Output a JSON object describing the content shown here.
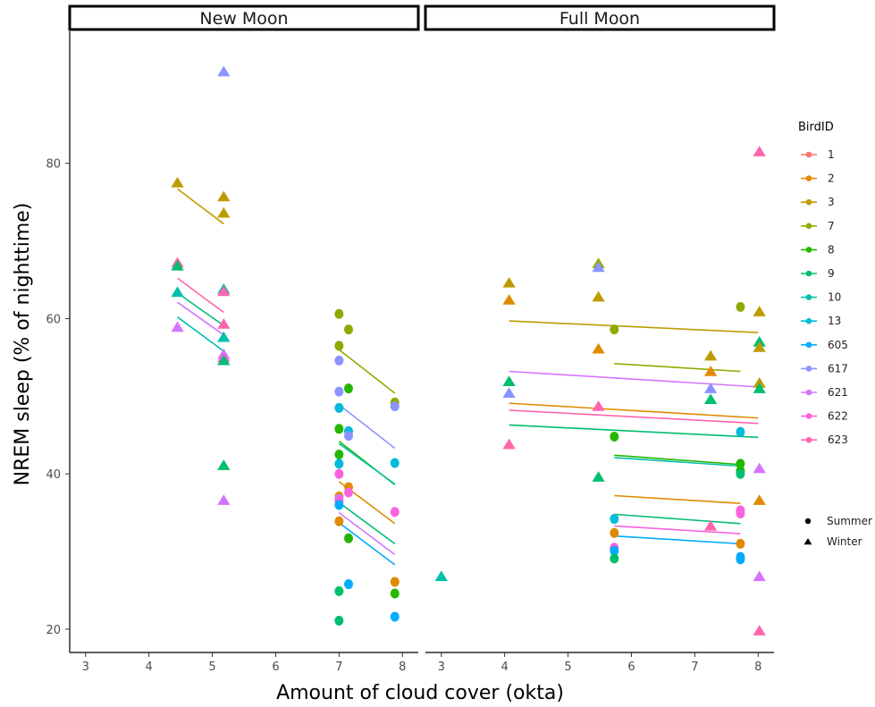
{
  "chart_data": {
    "type": "scatter",
    "xlabel": "Amount of cloud cover (okta)",
    "ylabel": "NREM sleep (% of nighttime)",
    "ylim": [
      17,
      97
    ],
    "y_ticks": [
      20,
      40,
      60,
      80
    ],
    "x_ticks": [
      3,
      4,
      5,
      6,
      7,
      8
    ],
    "xlim": [
      2.75,
      8.25
    ],
    "grid": false,
    "legend_placement": "right",
    "legend_title": "BirdID",
    "shape_legend": [
      {
        "label": "Summer",
        "shape": "circle"
      },
      {
        "label": "Winter",
        "shape": "triangle"
      }
    ],
    "birds": [
      {
        "id": "1",
        "color": "#F8766D"
      },
      {
        "id": "2",
        "color": "#E18A00"
      },
      {
        "id": "3",
        "color": "#BE9C00"
      },
      {
        "id": "7",
        "color": "#8CAB00"
      },
      {
        "id": "8",
        "color": "#24B700"
      },
      {
        "id": "9",
        "color": "#00BE70"
      },
      {
        "id": "10",
        "color": "#00C1AB"
      },
      {
        "id": "13",
        "color": "#00BBDA"
      },
      {
        "id": "605",
        "color": "#00ACFC"
      },
      {
        "id": "617",
        "color": "#8B93FF"
      },
      {
        "id": "621",
        "color": "#D575FE"
      },
      {
        "id": "622",
        "color": "#F962DD"
      },
      {
        "id": "623",
        "color": "#FF65AC"
      }
    ],
    "panels": [
      {
        "label": "New Moon",
        "points": [
          {
            "x": 4.45,
            "y": 77.5,
            "bird": "3",
            "season": "Winter"
          },
          {
            "x": 4.45,
            "y": 67.2,
            "bird": "623",
            "season": "Winter"
          },
          {
            "x": 4.45,
            "y": 66.8,
            "bird": "9",
            "season": "Winter"
          },
          {
            "x": 4.45,
            "y": 63.4,
            "bird": "10",
            "season": "Winter"
          },
          {
            "x": 4.45,
            "y": 58.9,
            "bird": "621",
            "season": "Winter"
          },
          {
            "x": 5.18,
            "y": 91.8,
            "bird": "617",
            "season": "Winter"
          },
          {
            "x": 5.18,
            "y": 75.7,
            "bird": "3",
            "season": "Winter"
          },
          {
            "x": 5.18,
            "y": 73.6,
            "bird": "3",
            "season": "Winter"
          },
          {
            "x": 5.18,
            "y": 63.8,
            "bird": "10",
            "season": "Winter"
          },
          {
            "x": 5.18,
            "y": 63.5,
            "bird": "623",
            "season": "Winter"
          },
          {
            "x": 5.18,
            "y": 59.3,
            "bird": "623",
            "season": "Winter"
          },
          {
            "x": 5.18,
            "y": 57.6,
            "bird": "10",
            "season": "Winter"
          },
          {
            "x": 5.18,
            "y": 55.4,
            "bird": "621",
            "season": "Winter"
          },
          {
            "x": 5.18,
            "y": 55.0,
            "bird": "622",
            "season": "Winter"
          },
          {
            "x": 5.18,
            "y": 54.6,
            "bird": "9",
            "season": "Winter"
          },
          {
            "x": 5.18,
            "y": 41.1,
            "bird": "9",
            "season": "Winter"
          },
          {
            "x": 5.18,
            "y": 36.6,
            "bird": "621",
            "season": "Winter"
          },
          {
            "x": 7.0,
            "y": 60.6,
            "bird": "7",
            "season": "Summer"
          },
          {
            "x": 7.0,
            "y": 56.5,
            "bird": "7",
            "season": "Summer"
          },
          {
            "x": 7.0,
            "y": 54.6,
            "bird": "617",
            "season": "Summer"
          },
          {
            "x": 7.0,
            "y": 50.6,
            "bird": "617",
            "season": "Summer"
          },
          {
            "x": 7.0,
            "y": 48.5,
            "bird": "13",
            "season": "Summer"
          },
          {
            "x": 7.0,
            "y": 45.8,
            "bird": "8",
            "season": "Summer"
          },
          {
            "x": 7.0,
            "y": 42.5,
            "bird": "8",
            "season": "Summer"
          },
          {
            "x": 7.0,
            "y": 41.3,
            "bird": "13",
            "season": "Summer"
          },
          {
            "x": 7.0,
            "y": 40.0,
            "bird": "622",
            "season": "Summer"
          },
          {
            "x": 7.0,
            "y": 37.1,
            "bird": "2",
            "season": "Summer"
          },
          {
            "x": 7.0,
            "y": 36.8,
            "bird": "621",
            "season": "Summer"
          },
          {
            "x": 7.0,
            "y": 36.5,
            "bird": "622",
            "season": "Summer"
          },
          {
            "x": 7.0,
            "y": 36.0,
            "bird": "605",
            "season": "Summer"
          },
          {
            "x": 7.0,
            "y": 33.9,
            "bird": "2",
            "season": "Summer"
          },
          {
            "x": 7.0,
            "y": 24.9,
            "bird": "9",
            "season": "Summer"
          },
          {
            "x": 7.0,
            "y": 21.1,
            "bird": "9",
            "season": "Summer"
          },
          {
            "x": 7.15,
            "y": 58.6,
            "bird": "7",
            "season": "Summer"
          },
          {
            "x": 7.15,
            "y": 51.0,
            "bird": "8",
            "season": "Summer"
          },
          {
            "x": 7.15,
            "y": 45.5,
            "bird": "13",
            "season": "Summer"
          },
          {
            "x": 7.15,
            "y": 44.9,
            "bird": "617",
            "season": "Summer"
          },
          {
            "x": 7.15,
            "y": 38.3,
            "bird": "2",
            "season": "Summer"
          },
          {
            "x": 7.15,
            "y": 37.6,
            "bird": "622",
            "season": "Summer"
          },
          {
            "x": 7.15,
            "y": 31.7,
            "bird": "8",
            "season": "Summer"
          },
          {
            "x": 7.15,
            "y": 25.8,
            "bird": "605",
            "season": "Summer"
          },
          {
            "x": 7.88,
            "y": 49.2,
            "bird": "7",
            "season": "Summer"
          },
          {
            "x": 7.88,
            "y": 48.7,
            "bird": "617",
            "season": "Summer"
          },
          {
            "x": 7.88,
            "y": 41.4,
            "bird": "13",
            "season": "Summer"
          },
          {
            "x": 7.88,
            "y": 35.1,
            "bird": "622",
            "season": "Summer"
          },
          {
            "x": 7.88,
            "y": 26.1,
            "bird": "2",
            "season": "Summer"
          },
          {
            "x": 7.88,
            "y": 24.6,
            "bird": "8",
            "season": "Summer"
          },
          {
            "x": 7.88,
            "y": 21.6,
            "bird": "605",
            "season": "Summer"
          }
        ],
        "fit_lines": [
          {
            "bird": "3",
            "x": [
              4.45,
              5.18
            ],
            "y": [
              76.7,
              72.2
            ]
          },
          {
            "bird": "623",
            "x": [
              4.45,
              5.18
            ],
            "y": [
              65.2,
              60.8
            ]
          },
          {
            "bird": "9",
            "x": [
              4.45,
              5.18
            ],
            "y": [
              63.3,
              59.1
            ]
          },
          {
            "bird": "621",
            "x": [
              4.45,
              5.18
            ],
            "y": [
              62.1,
              57.9
            ]
          },
          {
            "bird": "10",
            "x": [
              4.45,
              5.18
            ],
            "y": [
              60.2,
              55.8
            ]
          },
          {
            "bird": "7",
            "x": [
              7.0,
              7.88
            ],
            "y": [
              56.0,
              50.4
            ]
          },
          {
            "bird": "617",
            "x": [
              7.0,
              7.88
            ],
            "y": [
              48.9,
              43.3
            ]
          },
          {
            "bird": "8",
            "x": [
              7.0,
              7.88
            ],
            "y": [
              44.2,
              38.6
            ]
          },
          {
            "bird": "10",
            "x": [
              7.0,
              7.88
            ],
            "y": [
              43.9,
              38.7
            ]
          },
          {
            "bird": "2",
            "x": [
              7.0,
              7.88
            ],
            "y": [
              39.0,
              33.6
            ]
          },
          {
            "bird": "9",
            "x": [
              7.0,
              7.88
            ],
            "y": [
              36.3,
              31.0
            ]
          },
          {
            "bird": "621",
            "x": [
              7.0,
              7.88
            ],
            "y": [
              35.0,
              29.6
            ]
          },
          {
            "bird": "605",
            "x": [
              7.0,
              7.88
            ],
            "y": [
              33.7,
              28.3
            ]
          }
        ]
      },
      {
        "label": "Full Moon",
        "points": [
          {
            "x": 3.0,
            "y": 26.8,
            "bird": "10",
            "season": "Winter"
          },
          {
            "x": 4.07,
            "y": 64.6,
            "bird": "3",
            "season": "Winter"
          },
          {
            "x": 4.07,
            "y": 62.4,
            "bird": "2",
            "season": "Winter"
          },
          {
            "x": 4.07,
            "y": 51.9,
            "bird": "9",
            "season": "Winter"
          },
          {
            "x": 4.07,
            "y": 50.4,
            "bird": "617",
            "season": "Winter"
          },
          {
            "x": 4.07,
            "y": 43.8,
            "bird": "623",
            "season": "Winter"
          },
          {
            "x": 5.48,
            "y": 67.1,
            "bird": "7",
            "season": "Winter"
          },
          {
            "x": 5.48,
            "y": 66.6,
            "bird": "617",
            "season": "Winter"
          },
          {
            "x": 5.48,
            "y": 62.8,
            "bird": "3",
            "season": "Winter"
          },
          {
            "x": 5.48,
            "y": 56.1,
            "bird": "2",
            "season": "Winter"
          },
          {
            "x": 5.48,
            "y": 48.7,
            "bird": "623",
            "season": "Winter"
          },
          {
            "x": 5.48,
            "y": 39.6,
            "bird": "9",
            "season": "Winter"
          },
          {
            "x": 5.73,
            "y": 58.6,
            "bird": "7",
            "season": "Summer"
          },
          {
            "x": 5.73,
            "y": 44.8,
            "bird": "8",
            "season": "Summer"
          },
          {
            "x": 5.73,
            "y": 34.2,
            "bird": "13",
            "season": "Summer"
          },
          {
            "x": 5.73,
            "y": 32.4,
            "bird": "2",
            "season": "Summer"
          },
          {
            "x": 5.73,
            "y": 30.5,
            "bird": "622",
            "season": "Summer"
          },
          {
            "x": 5.73,
            "y": 30.1,
            "bird": "605",
            "season": "Summer"
          },
          {
            "x": 5.73,
            "y": 29.1,
            "bird": "9",
            "season": "Summer"
          },
          {
            "x": 7.25,
            "y": 55.2,
            "bird": "3",
            "season": "Winter"
          },
          {
            "x": 7.25,
            "y": 53.2,
            "bird": "2",
            "season": "Winter"
          },
          {
            "x": 7.25,
            "y": 51.0,
            "bird": "617",
            "season": "Winter"
          },
          {
            "x": 7.25,
            "y": 49.6,
            "bird": "9",
            "season": "Winter"
          },
          {
            "x": 7.25,
            "y": 33.3,
            "bird": "623",
            "season": "Winter"
          },
          {
            "x": 7.72,
            "y": 61.5,
            "bird": "7",
            "season": "Summer"
          },
          {
            "x": 7.72,
            "y": 45.4,
            "bird": "13",
            "season": "Summer"
          },
          {
            "x": 7.72,
            "y": 41.3,
            "bird": "8",
            "season": "Summer"
          },
          {
            "x": 7.72,
            "y": 40.4,
            "bird": "8",
            "season": "Summer"
          },
          {
            "x": 7.72,
            "y": 40.0,
            "bird": "9",
            "season": "Summer"
          },
          {
            "x": 7.72,
            "y": 35.3,
            "bird": "622",
            "season": "Summer"
          },
          {
            "x": 7.72,
            "y": 34.9,
            "bird": "622",
            "season": "Summer"
          },
          {
            "x": 7.72,
            "y": 31.0,
            "bird": "2",
            "season": "Summer"
          },
          {
            "x": 7.72,
            "y": 29.3,
            "bird": "605",
            "season": "Summer"
          },
          {
            "x": 7.72,
            "y": 29.0,
            "bird": "605",
            "season": "Summer"
          },
          {
            "x": 8.02,
            "y": 81.5,
            "bird": "623",
            "season": "Winter"
          },
          {
            "x": 8.02,
            "y": 60.9,
            "bird": "3",
            "season": "Winter"
          },
          {
            "x": 8.02,
            "y": 57.0,
            "bird": "9",
            "season": "Winter"
          },
          {
            "x": 8.02,
            "y": 56.3,
            "bird": "3",
            "season": "Winter"
          },
          {
            "x": 8.02,
            "y": 51.7,
            "bird": "3",
            "season": "Winter"
          },
          {
            "x": 8.02,
            "y": 51.0,
            "bird": "9",
            "season": "Winter"
          },
          {
            "x": 8.02,
            "y": 40.7,
            "bird": "621",
            "season": "Winter"
          },
          {
            "x": 8.02,
            "y": 36.6,
            "bird": "2",
            "season": "Winter"
          },
          {
            "x": 8.02,
            "y": 26.8,
            "bird": "621",
            "season": "Winter"
          },
          {
            "x": 8.02,
            "y": 19.8,
            "bird": "623",
            "season": "Winter"
          }
        ],
        "fit_lines": [
          {
            "bird": "3",
            "x": [
              4.07,
              8.0
            ],
            "y": [
              59.7,
              58.2
            ]
          },
          {
            "bird": "7",
            "x": [
              5.73,
              7.72
            ],
            "y": [
              54.2,
              53.2
            ]
          },
          {
            "bird": "621",
            "x": [
              4.07,
              8.0
            ],
            "y": [
              53.2,
              51.2
            ]
          },
          {
            "bird": "2",
            "x": [
              4.07,
              8.0
            ],
            "y": [
              49.1,
              47.2
            ]
          },
          {
            "bird": "623",
            "x": [
              4.07,
              8.0
            ],
            "y": [
              48.2,
              46.5
            ]
          },
          {
            "bird": "9",
            "x": [
              4.07,
              8.0
            ],
            "y": [
              46.3,
              44.7
            ]
          },
          {
            "bird": "8",
            "x": [
              5.73,
              7.72
            ],
            "y": [
              42.4,
              41.2
            ]
          },
          {
            "bird": "10",
            "x": [
              5.73,
              7.72
            ],
            "y": [
              42.1,
              41.0
            ]
          },
          {
            "bird": "2",
            "x": [
              5.73,
              7.72
            ],
            "y": [
              37.2,
              36.2
            ]
          },
          {
            "bird": "9",
            "x": [
              5.73,
              7.72
            ],
            "y": [
              34.8,
              33.6
            ]
          },
          {
            "bird": "622",
            "x": [
              5.73,
              7.72
            ],
            "y": [
              33.3,
              32.3
            ]
          },
          {
            "bird": "605",
            "x": [
              5.73,
              7.72
            ],
            "y": [
              32.0,
              31.0
            ]
          }
        ]
      }
    ]
  }
}
